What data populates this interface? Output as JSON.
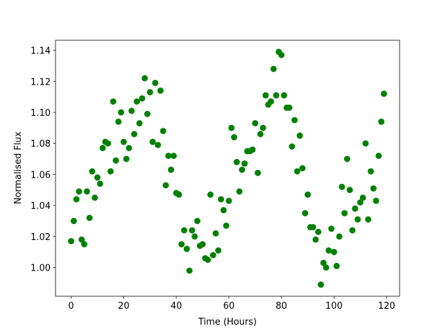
{
  "chart_data": {
    "type": "scatter",
    "xlabel": "Time (Hours)",
    "ylabel": "Normalised Flux",
    "color": "#008000",
    "x": [
      0,
      1,
      2,
      3,
      4,
      5,
      6,
      7,
      8,
      9,
      10,
      11,
      12,
      13,
      14,
      15,
      16,
      17,
      18,
      19,
      20,
      21,
      22,
      23,
      24,
      25,
      26,
      27,
      28,
      29,
      30,
      31,
      32,
      33,
      34,
      35,
      36,
      37,
      38,
      39,
      40,
      41,
      42,
      43,
      44,
      45,
      46,
      47,
      48,
      49,
      50,
      51,
      52,
      53,
      54,
      55,
      56,
      57,
      58,
      59,
      60,
      61,
      62,
      63,
      64,
      65,
      66,
      67,
      68,
      69,
      70,
      71,
      72,
      73,
      74,
      75,
      76,
      77,
      78,
      79,
      80,
      81,
      82,
      83,
      84,
      85,
      86,
      87,
      88,
      89,
      90,
      91,
      92,
      93,
      94,
      95,
      96,
      97,
      98,
      99,
      100,
      101,
      102,
      103,
      104,
      105,
      106,
      107,
      108,
      109,
      110,
      111,
      112,
      113,
      114,
      115,
      116,
      117,
      118,
      119
    ],
    "values": [
      1.017,
      1.03,
      1.044,
      1.049,
      1.018,
      1.015,
      1.049,
      1.032,
      1.062,
      1.045,
      1.058,
      1.054,
      1.077,
      1.081,
      1.08,
      1.062,
      1.107,
      1.069,
      1.094,
      1.1,
      1.081,
      1.07,
      1.077,
      1.101,
      1.086,
      1.107,
      1.093,
      1.109,
      1.122,
      1.099,
      1.113,
      1.081,
      1.119,
      1.079,
      1.114,
      1.088,
      1.053,
      1.072,
      1.063,
      1.072,
      1.048,
      1.047,
      1.015,
      1.024,
      1.012,
      0.998,
      1.024,
      1.02,
      1.03,
      1.014,
      1.015,
      1.006,
      1.005,
      1.047,
      1.008,
      1.022,
      1.011,
      1.044,
      1.037,
      1.027,
      1.043,
      1.09,
      1.084,
      1.068,
      1.049,
      1.063,
      1.067,
      1.075,
      1.075,
      1.076,
      1.093,
      1.061,
      1.086,
      1.09,
      1.111,
      1.105,
      1.107,
      1.128,
      1.111,
      1.139,
      1.137,
      1.111,
      1.103,
      1.103,
      1.078,
      1.095,
      1.062,
      1.085,
      1.064,
      1.035,
      1.047,
      1.026,
      1.026,
      1.018,
      1.023,
      0.989,
      1.003,
      1.0,
      1.011,
      1.025,
      1.01,
      1.001,
      1.02,
      1.052,
      1.035,
      1.07,
      1.05,
      1.024,
      1.038,
      1.031,
      1.042,
      1.045,
      1.08,
      1.031,
      1.062,
      1.051,
      1.043,
      1.072,
      1.094,
      1.112
    ],
    "xlim": [
      -5.95,
      124.95
    ],
    "ylim": [
      0.9815,
      1.1465
    ],
    "xticks": [
      0,
      20,
      40,
      60,
      80,
      100,
      120
    ],
    "yticks": [
      {
        "value": 1.0,
        "label": "1.00"
      },
      {
        "value": 1.02,
        "label": "1.02"
      },
      {
        "value": 1.04,
        "label": "1.04"
      },
      {
        "value": 1.06,
        "label": "1.06"
      },
      {
        "value": 1.08,
        "label": "1.08"
      },
      {
        "value": 1.1,
        "label": "1.10"
      },
      {
        "value": 1.12,
        "label": "1.12"
      },
      {
        "value": 1.14,
        "label": "1.14"
      }
    ]
  }
}
